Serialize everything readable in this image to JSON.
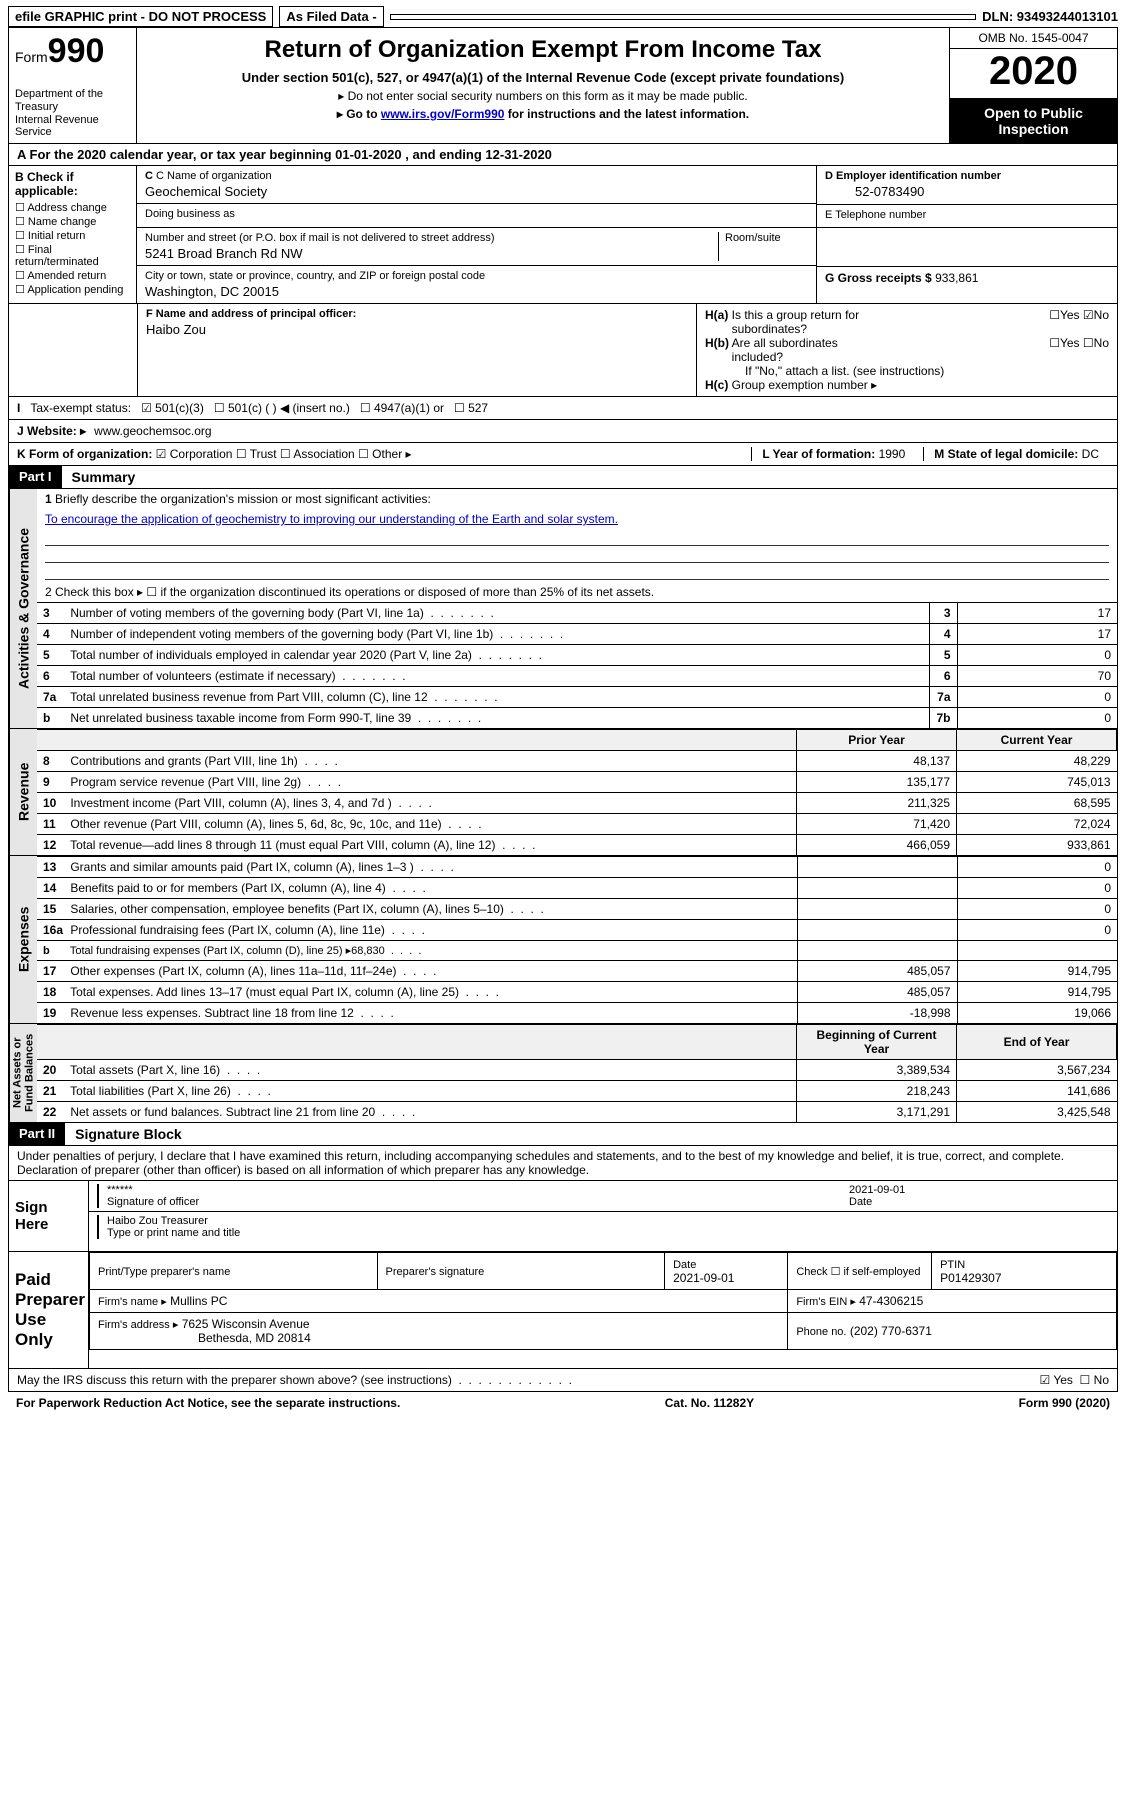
{
  "colors": {
    "black": "#000000",
    "white": "#ffffff",
    "grey": "#e6e6e6",
    "link": "#0000cc"
  },
  "topbar": {
    "efile": "efile GRAPHIC print - DO NOT PROCESS",
    "asfiled": "As Filed Data -",
    "dln": "DLN: 93493244013101"
  },
  "header": {
    "form_prefix": "Form",
    "form_num": "990",
    "dept": "Department of the Treasury\nInternal Revenue Service",
    "title": "Return of Organization Exempt From Income Tax",
    "sub": "Under section 501(c), 527, or 4947(a)(1) of the Internal Revenue Code (except private foundations)",
    "note1": "▸ Do not enter social security numbers on this form as it may be made public.",
    "note2_pre": "▸ Go to ",
    "note2_link": "www.irs.gov/Form990",
    "note2_post": " for instructions and the latest information.",
    "omb": "OMB No. 1545-0047",
    "year": "2020",
    "open": "Open to Public Inspection"
  },
  "rowA": "A   For the 2020 calendar year, or tax year beginning 01-01-2020   , and ending 12-31-2020",
  "colB": {
    "hdr": "B Check if applicable:",
    "items": [
      "Address change",
      "Name change",
      "Initial return",
      "Final return/terminated",
      "Amended return",
      "Application pending"
    ]
  },
  "c": {
    "name_lbl": "C Name of organization",
    "name": "Geochemical Society",
    "dba_lbl": "Doing business as",
    "dba": "",
    "street_lbl": "Number and street (or P.O. box if mail is not delivered to street address)",
    "room_lbl": "Room/suite",
    "street": "5241 Broad Branch Rd NW",
    "city_lbl": "City or town, state or province, country, and ZIP or foreign postal code",
    "city": "Washington, DC  20015"
  },
  "d": {
    "lbl": "D Employer identification number",
    "val": "52-0783490"
  },
  "e": {
    "lbl": "E Telephone number",
    "val": ""
  },
  "g": {
    "lbl": "G Gross receipts $",
    "val": "933,861"
  },
  "f": {
    "lbl": "F  Name and address of principal officer:",
    "val": "Haibo Zou"
  },
  "h": {
    "a": "H(a)  Is this a group return for subordinates?",
    "a_yes": "Yes",
    "a_no": "No",
    "a_checked": "No",
    "b": "H(b)  Are all subordinates included?",
    "b_yes": "Yes",
    "b_no": "No",
    "note": "If \"No,\" attach a list. (see instructions)",
    "c": "H(c)  Group exemption number ▸"
  },
  "i": {
    "lbl": "I   Tax-exempt status:",
    "opts": [
      "501(c)(3)",
      "501(c) (  ) ◀ (insert no.)",
      "4947(a)(1) or",
      "527"
    ],
    "checked": 0
  },
  "j": {
    "lbl": "J   Website: ▸",
    "val": "www.geochemsoc.org"
  },
  "k": {
    "lbl": "K Form of organization:",
    "opts": [
      "Corporation",
      "Trust",
      "Association",
      "Other ▸"
    ],
    "checked": 0
  },
  "l": {
    "lbl": "L Year of formation:",
    "val": "1990"
  },
  "m": {
    "lbl": "M State of legal domicile:",
    "val": "DC"
  },
  "part1": {
    "tag": "Part I",
    "title": "Summary"
  },
  "summary": {
    "line1_lbl": "1 Briefly describe the organization's mission or most significant activities:",
    "line1_val": "To encourage the application of geochemistry to improving our understanding of the Earth and solar system.",
    "line2": "2   Check this box ▸ ☐  if the organization discontinued its operations or disposed of more than 25% of its net assets.",
    "gov_rows": [
      {
        "n": "3",
        "t": "Number of voting members of the governing body (Part VI, line 1a)",
        "rn": "3",
        "v": "17"
      },
      {
        "n": "4",
        "t": "Number of independent voting members of the governing body (Part VI, line 1b)",
        "rn": "4",
        "v": "17"
      },
      {
        "n": "5",
        "t": "Total number of individuals employed in calendar year 2020 (Part V, line 2a)",
        "rn": "5",
        "v": "0"
      },
      {
        "n": "6",
        "t": "Total number of volunteers (estimate if necessary)",
        "rn": "6",
        "v": "70"
      },
      {
        "n": "7a",
        "t": "Total unrelated business revenue from Part VIII, column (C), line 12",
        "rn": "7a",
        "v": "0"
      },
      {
        "n": "b",
        "t": "Net unrelated business taxable income from Form 990-T, line 39",
        "rn": "7b",
        "v": "0"
      }
    ],
    "py_hdr": "Prior Year",
    "cy_hdr": "Current Year",
    "rev_rows": [
      {
        "n": "8",
        "t": "Contributions and grants (Part VIII, line 1h)",
        "py": "48,137",
        "cy": "48,229"
      },
      {
        "n": "9",
        "t": "Program service revenue (Part VIII, line 2g)",
        "py": "135,177",
        "cy": "745,013"
      },
      {
        "n": "10",
        "t": "Investment income (Part VIII, column (A), lines 3, 4, and 7d )",
        "py": "211,325",
        "cy": "68,595"
      },
      {
        "n": "11",
        "t": "Other revenue (Part VIII, column (A), lines 5, 6d, 8c, 9c, 10c, and 11e)",
        "py": "71,420",
        "cy": "72,024"
      },
      {
        "n": "12",
        "t": "Total revenue—add lines 8 through 11 (must equal Part VIII, column (A), line 12)",
        "py": "466,059",
        "cy": "933,861"
      }
    ],
    "exp_rows": [
      {
        "n": "13",
        "t": "Grants and similar amounts paid (Part IX, column (A), lines 1–3 )",
        "py": "",
        "cy": "0"
      },
      {
        "n": "14",
        "t": "Benefits paid to or for members (Part IX, column (A), line 4)",
        "py": "",
        "cy": "0"
      },
      {
        "n": "15",
        "t": "Salaries, other compensation, employee benefits (Part IX, column (A), lines 5–10)",
        "py": "",
        "cy": "0"
      },
      {
        "n": "16a",
        "t": "Professional fundraising fees (Part IX, column (A), line 11e)",
        "py": "",
        "cy": "0"
      },
      {
        "n": "b",
        "t": "Total fundraising expenses (Part IX, column (D), line 25) ▸68,830",
        "py": "",
        "cy": "",
        "grey": true
      },
      {
        "n": "17",
        "t": "Other expenses (Part IX, column (A), lines 11a–11d, 11f–24e)",
        "py": "485,057",
        "cy": "914,795"
      },
      {
        "n": "18",
        "t": "Total expenses. Add lines 13–17 (must equal Part IX, column (A), line 25)",
        "py": "485,057",
        "cy": "914,795"
      },
      {
        "n": "19",
        "t": "Revenue less expenses. Subtract line 18 from line 12",
        "py": "-18,998",
        "cy": "19,066"
      }
    ],
    "na_hdr1": "Beginning of Current Year",
    "na_hdr2": "End of Year",
    "na_rows": [
      {
        "n": "20",
        "t": "Total assets (Part X, line 16)",
        "py": "3,389,534",
        "cy": "3,567,234"
      },
      {
        "n": "21",
        "t": "Total liabilities (Part X, line 26)",
        "py": "218,243",
        "cy": "141,686"
      },
      {
        "n": "22",
        "t": "Net assets or fund balances. Subtract line 21 from line 20",
        "py": "3,171,291",
        "cy": "3,425,548"
      }
    ]
  },
  "part2": {
    "tag": "Part II",
    "title": "Signature Block"
  },
  "perjury": "Under penalties of perjury, I declare that I have examined this return, including accompanying schedules and statements, and to the best of my knowledge and belief, it is true, correct, and complete. Declaration of preparer (other than officer) is based on all information of which preparer has any knowledge.",
  "sign": {
    "here": "Sign Here",
    "stars": "******",
    "sig_lbl": "Signature of officer",
    "date": "2021-09-01",
    "date_lbl": "Date",
    "name": "Haibo Zou Treasurer",
    "name_lbl": "Type or print name and title"
  },
  "paid": {
    "here": "Paid Preparer Use Only",
    "h1": "Print/Type preparer's name",
    "h2": "Preparer's signature",
    "h3": "Date",
    "h4": "Check ☐ if self-employed",
    "h5": "PTIN",
    "date": "2021-09-01",
    "ptin": "P01429307",
    "firm_lbl": "Firm's name   ▸",
    "firm": "Mullins PC",
    "ein_lbl": "Firm's EIN ▸",
    "ein": "47-4306215",
    "addr_lbl": "Firm's address ▸",
    "addr1": "7625 Wisconsin Avenue",
    "addr2": "Bethesda, MD  20814",
    "phone_lbl": "Phone no.",
    "phone": "(202) 770-6371"
  },
  "discuss": "May the IRS discuss this return with the preparer shown above? (see instructions)",
  "discuss_yes": "Yes",
  "discuss_no": "No",
  "footer": {
    "left": "For Paperwork Reduction Act Notice, see the separate instructions.",
    "mid": "Cat. No. 11282Y",
    "right": "Form 990 (2020)"
  }
}
